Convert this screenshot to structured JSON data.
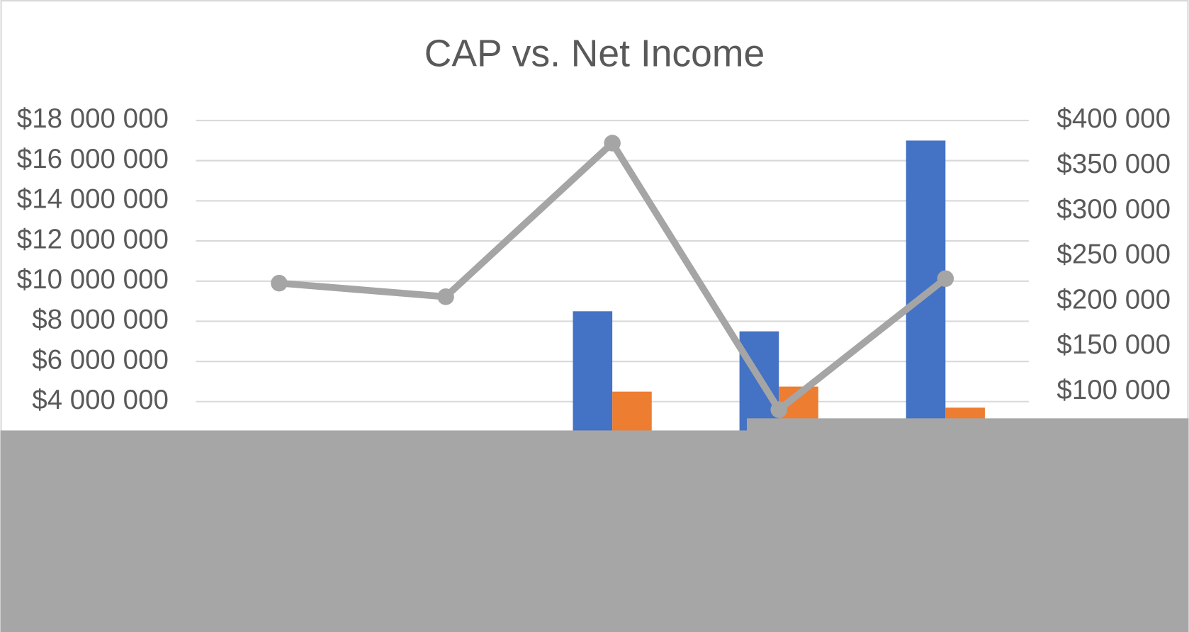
{
  "chart_data": {
    "type": "bar-line",
    "title": "CAP vs. Net Income",
    "categories": [
      null,
      null,
      null,
      null,
      null
    ],
    "series": [
      {
        "type": "bar",
        "color": "#4472c4",
        "values": [
          null,
          null,
          8500000,
          7500000,
          17000000
        ]
      },
      {
        "type": "bar",
        "color": "#ed7d31",
        "values": [
          null,
          null,
          4500000,
          4750000,
          3700000
        ]
      },
      {
        "type": "line",
        "axis": "y2",
        "color": "#a5a5a5",
        "values": [
          220000,
          205000,
          375000,
          80000,
          225000
        ]
      }
    ],
    "ylim": [
      0,
      18000000
    ],
    "yticks": [
      {
        "value": 4000000,
        "label": "$4 000 000"
      },
      {
        "value": 6000000,
        "label": "$6 000 000"
      },
      {
        "value": 8000000,
        "label": "$8 000 000"
      },
      {
        "value": 10000000,
        "label": "$10 000 000"
      },
      {
        "value": 12000000,
        "label": "$12 000 000"
      },
      {
        "value": 14000000,
        "label": "$14 000 000"
      },
      {
        "value": 16000000,
        "label": "$16 000 000"
      },
      {
        "value": 18000000,
        "label": "$18 000 000"
      }
    ],
    "y2lim": [
      0,
      400000
    ],
    "y2ticks": [
      {
        "value": 100000,
        "label": "$100 000"
      },
      {
        "value": 150000,
        "label": "$150 000"
      },
      {
        "value": 200000,
        "label": "$200 000"
      },
      {
        "value": 250000,
        "label": "$250 000"
      },
      {
        "value": 300000,
        "label": "$300 000"
      },
      {
        "value": 350000,
        "label": "$350 000"
      },
      {
        "value": 400000,
        "label": "$400 000"
      }
    ],
    "grid": true
  }
}
